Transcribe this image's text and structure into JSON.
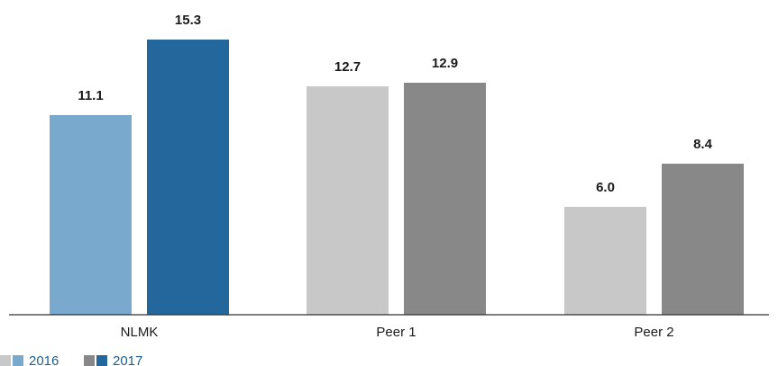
{
  "chart_data": {
    "type": "bar",
    "categories": [
      "NLMK",
      "Peer 1",
      "Peer 2"
    ],
    "series": [
      {
        "name": "2016",
        "values": [
          11.1,
          12.7,
          6.0
        ],
        "value_labels": [
          "11.1",
          "12.7",
          "6.0"
        ],
        "colors": [
          "#79a9cc",
          "#c8c8c8",
          "#c8c8c8"
        ]
      },
      {
        "name": "2017",
        "values": [
          15.3,
          12.9,
          8.4
        ],
        "value_labels": [
          "15.3",
          "12.9",
          "8.4"
        ],
        "colors": [
          "#23679c",
          "#888888",
          "#888888"
        ]
      }
    ],
    "ylim": [
      0,
      17.5
    ],
    "grid": false,
    "legend_placement": "bottom-left",
    "legend": [
      {
        "label": "2016",
        "swatch_colors": [
          "#c8c8c8",
          "#79a9cc"
        ]
      },
      {
        "label": "2017",
        "swatch_colors": [
          "#888888",
          "#23679c"
        ]
      }
    ],
    "axis_color": "#333333",
    "text_color": "#1a1a1a",
    "legend_text_color": "#1f5f8b"
  }
}
